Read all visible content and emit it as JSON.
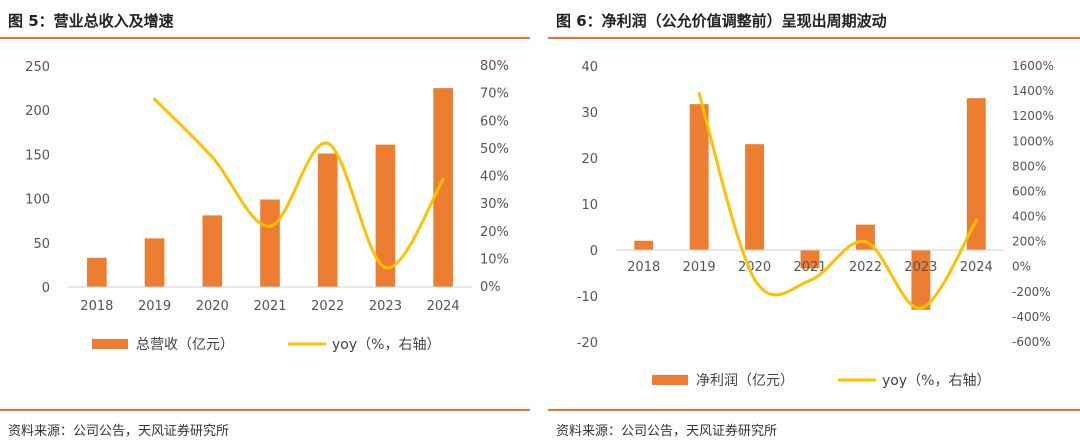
{
  "charts": [
    {
      "title": "图 5：营业总收入及增速",
      "source": "资料来源：公司公告，天风证券研究所",
      "chart_data": {
        "type": "bar",
        "categories": [
          "2018",
          "2019",
          "2020",
          "2021",
          "2022",
          "2023",
          "2024"
        ],
        "series": [
          {
            "name": "总营收（亿元）",
            "type": "bar",
            "axis": "left",
            "color": "#ed7d31",
            "values": [
              33,
              55,
              81,
              99,
              151,
              161,
              225
            ]
          },
          {
            "name": "yoy（%，右轴）",
            "type": "line",
            "axis": "right",
            "color": "#ffc000",
            "x": [
              "2019",
              "2020",
              "2021",
              "2022",
              "2023",
              "2024"
            ],
            "values": [
              68,
              47,
              22,
              52,
              7,
              39
            ]
          }
        ],
        "y_left": {
          "min": 0,
          "max": 250,
          "ticks": [
            "0",
            "50",
            "100",
            "150",
            "200",
            "250"
          ]
        },
        "y_right": {
          "min": 0,
          "max": 80,
          "ticks": [
            "0%",
            "10%",
            "20%",
            "30%",
            "40%",
            "50%",
            "60%",
            "70%",
            "80%"
          ]
        },
        "grid": false,
        "legend": "bottom"
      }
    },
    {
      "title": "图 6：净利润（公允价值调整前）呈现出周期波动",
      "source": "资料来源：公司公告，天风证券研究所",
      "chart_data": {
        "type": "bar",
        "categories": [
          "2018",
          "2019",
          "2020",
          "2021",
          "2022",
          "2023",
          "2024"
        ],
        "series": [
          {
            "name": "净利润（亿元）",
            "type": "bar",
            "axis": "left",
            "color": "#ed7d31",
            "values": [
              2,
              31.7,
              23,
              -4,
              5.5,
              -13,
              33
            ]
          },
          {
            "name": "yoy（%，右轴）",
            "type": "line",
            "axis": "right",
            "color": "#ffc000",
            "x": [
              "2019",
              "2020",
              "2021",
              "2022",
              "2023",
              "2024"
            ],
            "values": [
              1380,
              -100,
              -110,
              200,
              -330,
              370
            ]
          }
        ],
        "y_left": {
          "min": -20,
          "max": 40,
          "ticks": [
            "-20",
            "-10",
            "0",
            "10",
            "20",
            "30",
            "40"
          ]
        },
        "y_right": {
          "min": -600,
          "max": 1600,
          "ticks": [
            "-600%",
            "-400%",
            "-200%",
            "0%",
            "200%",
            "400%",
            "600%",
            "800%",
            "1000%",
            "1200%",
            "1400%",
            "1600%"
          ]
        },
        "grid": false,
        "legend": "bottom"
      }
    }
  ]
}
